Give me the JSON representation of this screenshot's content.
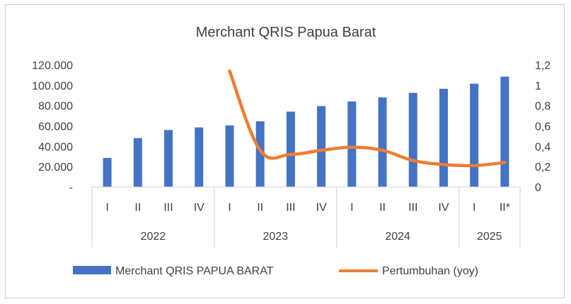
{
  "chart_data": {
    "type": "bar",
    "title": "Merchant QRIS Papua Barat",
    "quarters": [
      "I",
      "II",
      "III",
      "IV",
      "I",
      "II",
      "III",
      "IV",
      "I",
      "II",
      "III",
      "IV",
      "I",
      "II*"
    ],
    "years": [
      {
        "label": "2022",
        "quarters": 4
      },
      {
        "label": "2023",
        "quarters": 4
      },
      {
        "label": "2024",
        "quarters": 4
      },
      {
        "label": "2025",
        "quarters": 2
      }
    ],
    "left_axis": {
      "ylim": [
        0,
        120000
      ],
      "ticks": [
        "-",
        "20.000",
        "40.000",
        "60.000",
        "80.000",
        "100.000",
        "120.000"
      ]
    },
    "right_axis": {
      "ylim": [
        0,
        1.2
      ],
      "ticks": [
        "0",
        "0,2",
        "0,4",
        "0,6",
        "0,8",
        "1",
        "1,2"
      ]
    },
    "series": [
      {
        "name": "Merchant QRIS PAPUA BARAT",
        "type": "bar",
        "axis": "left",
        "color": "#4472C4",
        "values": [
          28500,
          48000,
          56000,
          58500,
          60500,
          64500,
          74000,
          79500,
          84000,
          88000,
          92500,
          96500,
          101500,
          108500
        ]
      },
      {
        "name": "Pertumbuhan (yoy)",
        "type": "line",
        "axis": "right",
        "color": "#ED7D31",
        "values": [
          null,
          null,
          null,
          null,
          1.14,
          0.36,
          0.32,
          0.36,
          0.39,
          0.36,
          0.26,
          0.22,
          0.21,
          0.24
        ]
      }
    ],
    "legend_position": "bottom",
    "grid": false
  }
}
